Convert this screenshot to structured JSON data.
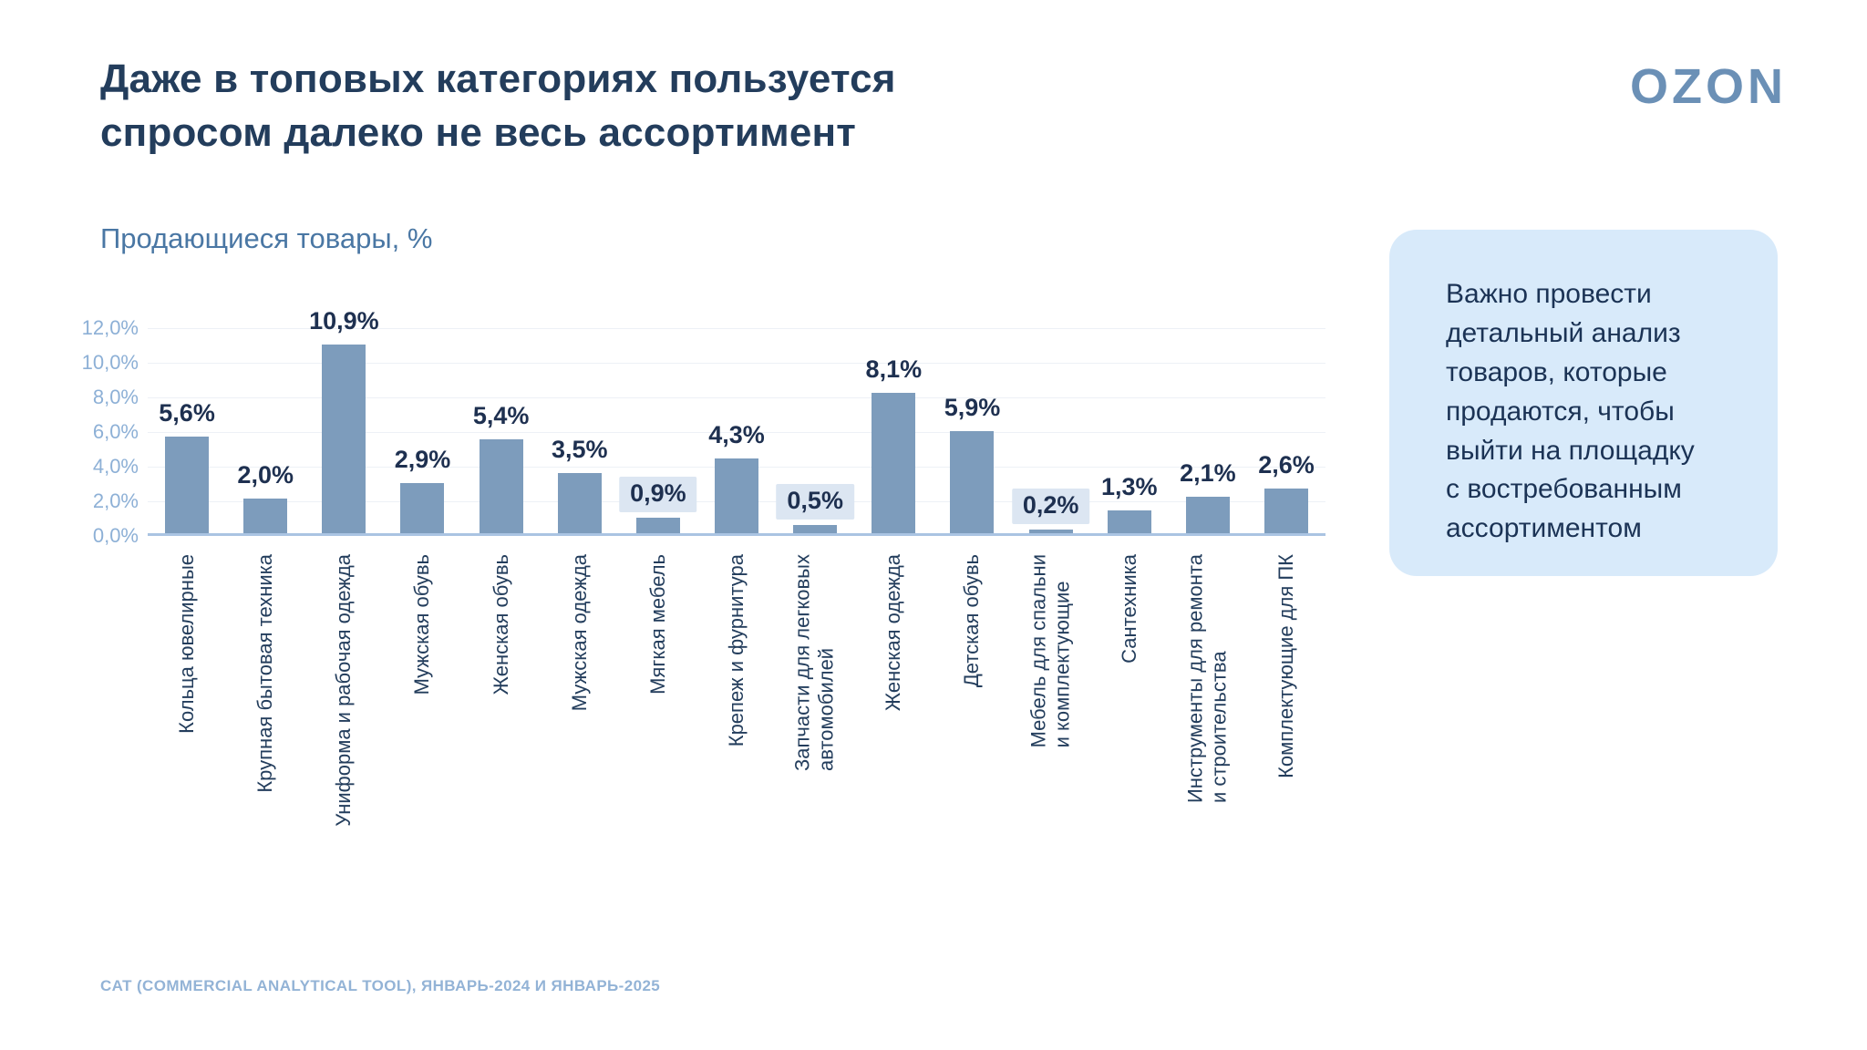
{
  "header": {
    "title": "Даже в топовых категориях пользуется\nспросом далеко не весь ассортимент",
    "logo": "OZON"
  },
  "chart": {
    "subtitle": "Продающиеся товары, %"
  },
  "chart_data": {
    "type": "bar",
    "title": "Продающиеся товары, %",
    "categories": [
      "Кольца ювелирные",
      "Крупная бытовая техника",
      "Униформа и рабочая одежда",
      "Мужская обувь",
      "Женская обувь",
      "Мужская одежда",
      "Мягкая мебель",
      "Крепеж и фурнитура",
      "Запчасти для легковых\nавтомобилей",
      "Женская одежда",
      "Детская обувь",
      "Мебель для спальни\nи комплектующие",
      "Сантехника",
      "Инструменты для ремонта\nи строительства",
      "Комплектующие для ПК"
    ],
    "values": [
      5.6,
      2.0,
      10.9,
      2.9,
      5.4,
      3.5,
      0.9,
      4.3,
      0.5,
      8.1,
      5.9,
      0.2,
      1.3,
      2.1,
      2.6
    ],
    "value_labels": [
      "5,6%",
      "2,0%",
      "10,9%",
      "2,9%",
      "5,4%",
      "3,5%",
      "0,9%",
      "4,3%",
      "0,5%",
      "8,1%",
      "5,9%",
      "0,2%",
      "1,3%",
      "2,1%",
      "2,6%"
    ],
    "highlighted": [
      false,
      false,
      false,
      false,
      false,
      false,
      true,
      false,
      true,
      false,
      false,
      true,
      false,
      false,
      false
    ],
    "yticks": [
      "0,0%",
      "2,0%",
      "4,0%",
      "6,0%",
      "8,0%",
      "10,0%",
      "12,0%"
    ],
    "ylim": [
      0,
      12
    ],
    "grid": true,
    "xlabel": "",
    "ylabel": "Продающиеся товары, %"
  },
  "callout": {
    "text": "Важно провести\nдетальный анализ\nтоваров, которые\nпродаются, чтобы\nвыйти на площадку\nс востребованным\nассортиментом"
  },
  "footer": {
    "source": "CAT (COMMERCIAL ANALYTICAL TOOL), ЯНВАРЬ-2024 И ЯНВАРЬ-2025"
  },
  "colors": {
    "title_text": "#233d5c",
    "subtitle_blue": "#4a77a4",
    "bar": "#7d9cbc",
    "axis_line": "#aac4e2",
    "tick_label": "#8db0d6",
    "highlight_label_bg": "#dce6f2",
    "callout_bg": "#d8eafa",
    "footer_text": "#93b3d6",
    "logo": "#6b90b6",
    "background": "#ffffff"
  }
}
